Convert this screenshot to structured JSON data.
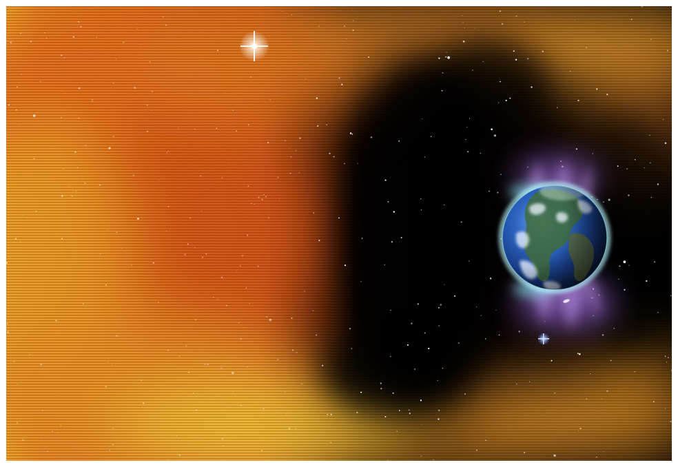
{
  "image": {
    "colors": {
      "frame": "#ffffff",
      "space": "#000000",
      "nebula_orange": "#e0631a",
      "nebula_amber": "#f2a51f",
      "nebula_gold": "#f7c23a",
      "ocean_blue": "#1f4fa8",
      "aurora_violet": "#b27bff",
      "aurora_cyan": "#7ff0ff"
    },
    "objects": [
      {
        "name": "solar-nebula",
        "kind": "background"
      },
      {
        "name": "starfield",
        "kind": "background"
      },
      {
        "name": "bright-star",
        "kind": "light"
      },
      {
        "name": "blue-star",
        "kind": "light"
      },
      {
        "name": "earth-globe",
        "kind": "planet"
      },
      {
        "name": "aurora-glow",
        "kind": "light"
      }
    ]
  }
}
